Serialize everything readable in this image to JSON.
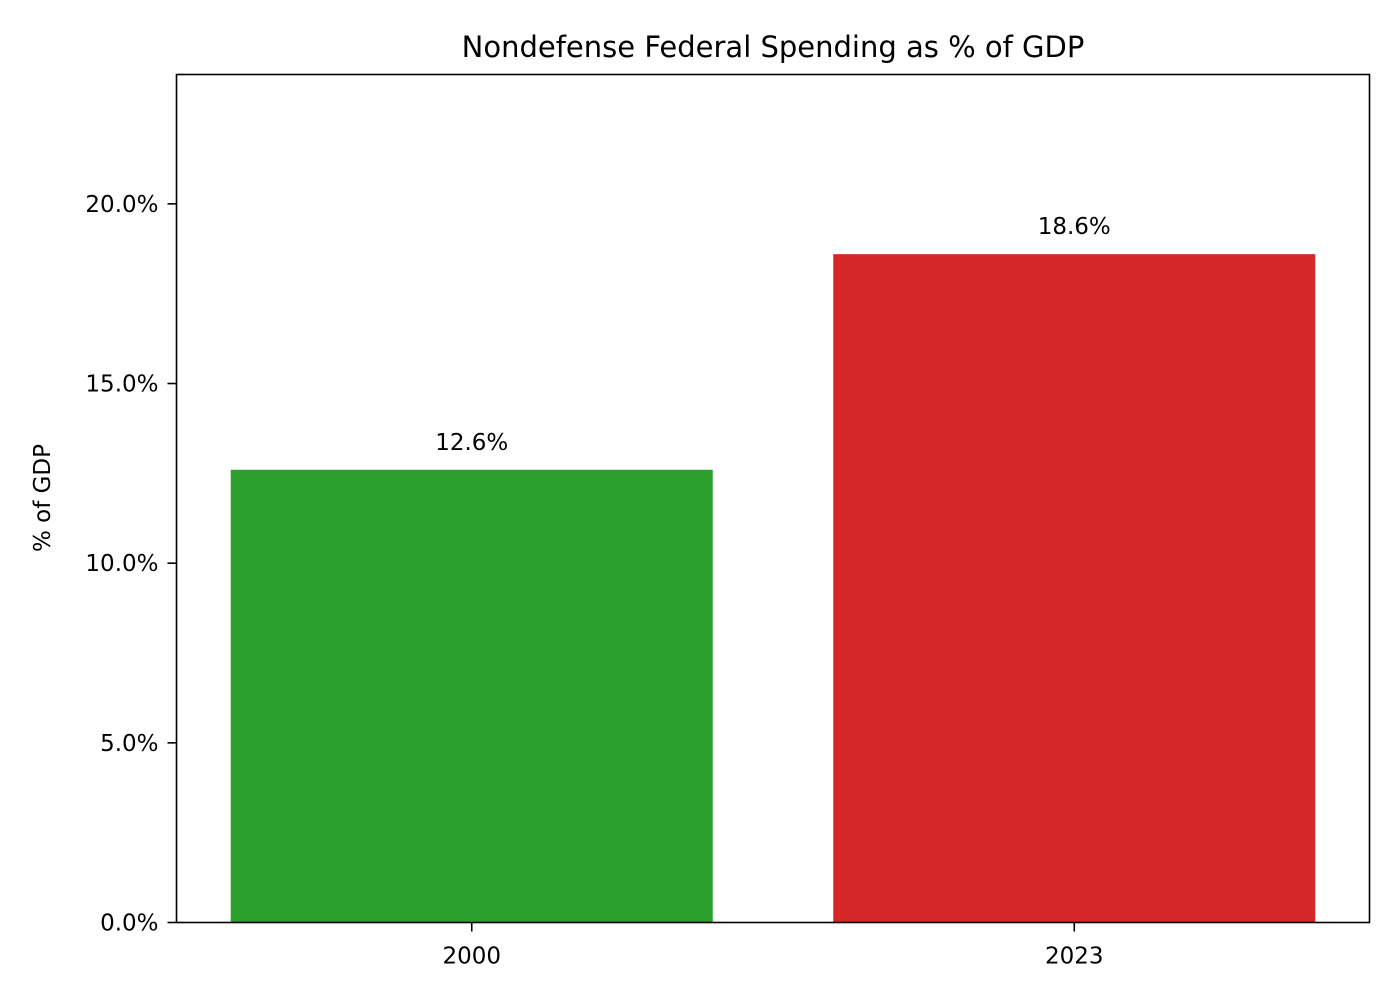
{
  "chart_data": {
    "type": "bar",
    "title": "Nondefense Federal Spending as % of GDP",
    "xlabel": "",
    "ylabel": "% of GDP",
    "categories": [
      "2000",
      "2023"
    ],
    "values": [
      12.6,
      18.6
    ],
    "value_labels": [
      "12.6%",
      "18.6%"
    ],
    "colors": [
      "#2ca02c",
      "#d62728"
    ],
    "ylim": [
      0,
      23.6
    ],
    "yticks": [
      0,
      5,
      10,
      15,
      20
    ],
    "ytick_labels": [
      "0.0%",
      "5.0%",
      "10.0%",
      "15.0%",
      "20.0%"
    ],
    "grid": false,
    "legend": "none"
  }
}
